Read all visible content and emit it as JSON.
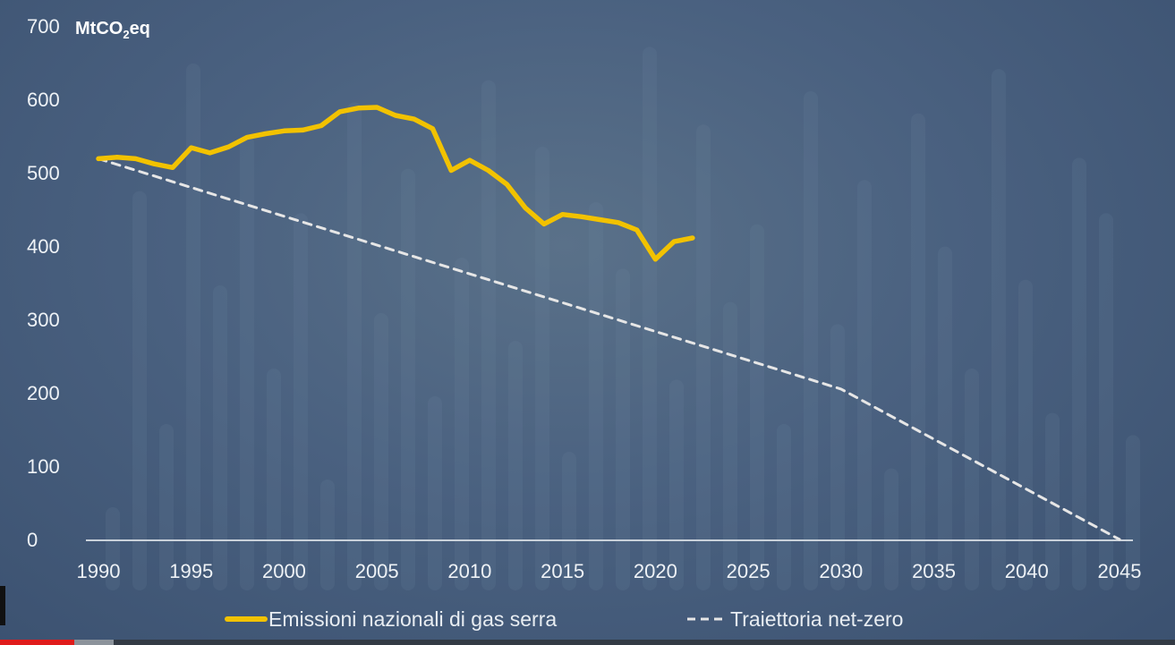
{
  "chart_data": {
    "type": "line",
    "unit_label": "MtCO",
    "unit_sub": "2",
    "unit_suffix": "eq",
    "xlim": [
      1990,
      2045
    ],
    "ylim": [
      0,
      700
    ],
    "xticks": [
      1990,
      1995,
      2000,
      2005,
      2010,
      2015,
      2020,
      2025,
      2030,
      2035,
      2040,
      2045
    ],
    "yticks": [
      0,
      100,
      200,
      300,
      400,
      500,
      600,
      700
    ],
    "legend_position": "bottom",
    "grid": false,
    "series": [
      {
        "name": "Emissioni nazionali di gas serra",
        "style": "solid",
        "color": "#f2c200",
        "x": [
          1990,
          1991,
          1992,
          1993,
          1994,
          1995,
          1996,
          1997,
          1998,
          1999,
          2000,
          2001,
          2002,
          2003,
          2004,
          2005,
          2006,
          2007,
          2008,
          2009,
          2010,
          2011,
          2012,
          2013,
          2014,
          2015,
          2016,
          2017,
          2018,
          2019,
          2020,
          2021,
          2022
        ],
        "y": [
          519,
          521,
          519,
          512,
          507,
          534,
          527,
          535,
          548,
          553,
          557,
          558,
          564,
          583,
          588,
          589,
          578,
          573,
          560,
          503,
          517,
          503,
          484,
          452,
          430,
          443,
          440,
          436,
          432,
          422,
          382,
          406,
          411
        ]
      },
      {
        "name": "Traiettoria net-zero",
        "style": "dashed",
        "color": "#e6e6e6",
        "x": [
          1990,
          2030,
          2045
        ],
        "y": [
          519,
          205,
          0
        ]
      }
    ]
  },
  "playback": {
    "played_fraction": 0.063,
    "buffered_fraction": 0.097
  }
}
